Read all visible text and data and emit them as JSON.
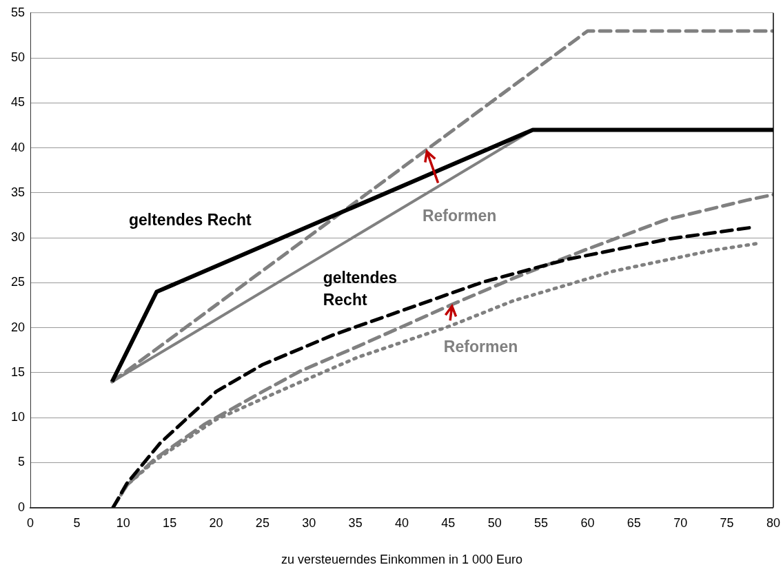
{
  "chart_data": {
    "type": "line",
    "xlabel": "zu versteuerndes Einkommen in 1 000 Euro",
    "xlim": [
      0,
      80
    ],
    "xticks": [
      0,
      5,
      10,
      15,
      20,
      25,
      30,
      35,
      40,
      45,
      50,
      55,
      60,
      65,
      70,
      75,
      80
    ],
    "ylim": [
      0,
      55
    ],
    "yticks": [
      0,
      5,
      10,
      15,
      20,
      25,
      30,
      35,
      40,
      45,
      50,
      55
    ],
    "grid": "y",
    "legend": false,
    "marker": "none",
    "series": [
      {
        "color": "#000000",
        "line_style": "solid",
        "x": [
          8.8,
          13.6,
          54.1,
          80
        ],
        "values": [
          14,
          24,
          42,
          42
        ]
      },
      {
        "color": "#808080",
        "line_style": "solid",
        "x": [
          8.8,
          54.1
        ],
        "values": [
          14,
          42
        ]
      },
      {
        "color": "#808080",
        "line_style": "dashed",
        "x": [
          8.8,
          60,
          80
        ],
        "values": [
          14,
          53,
          53
        ]
      },
      {
        "color": "#000000",
        "line_style": "dashed",
        "x": [
          8.9,
          10.4,
          14,
          20,
          25,
          32.6,
          45.2,
          48.8,
          57.8,
          68.9,
          78
        ],
        "values": [
          0,
          2.7,
          7.2,
          12.9,
          15.9,
          19.2,
          23.8,
          25.1,
          27.6,
          29.9,
          31.2
        ]
      },
      {
        "color": "#808080",
        "line_style": "dashed",
        "x": [
          8.9,
          10.4,
          13.5,
          18.8,
          25,
          29.1,
          35.2,
          45.2,
          52,
          59.6,
          68.4,
          77.2,
          80
        ],
        "values": [
          0,
          2.5,
          5.5,
          9.3,
          12.9,
          15.2,
          17.9,
          22.5,
          25.5,
          28.6,
          32,
          34.2,
          34.8
        ]
      },
      {
        "color": "#808080",
        "line_style": "dotted",
        "x": [
          8.9,
          10.4,
          13.5,
          20,
          27.6,
          35.2,
          45.2,
          52,
          62.8,
          73.4,
          78.5
        ],
        "values": [
          0,
          2.5,
          5.3,
          9.8,
          13.3,
          16.7,
          20.2,
          23,
          26.3,
          28.6,
          29.4
        ]
      }
    ],
    "annotations": [
      "geltendes Recht",
      "Reformen",
      "geltendes\nRecht",
      "Reformen"
    ]
  }
}
